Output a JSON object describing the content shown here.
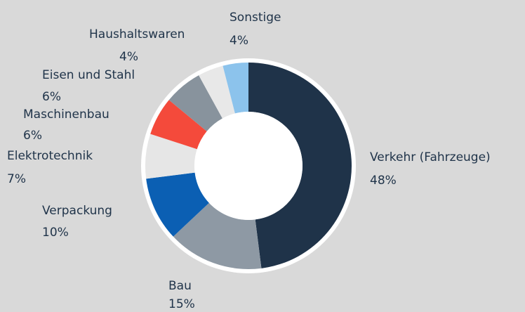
{
  "chart_data": {
    "type": "pie",
    "categories": [
      "Verkehr (Fahrzeuge)",
      "Bau",
      "Verpackung",
      "Elektrotechnik",
      "Maschinenbau",
      "Eisen und Stahl",
      "Haushaltswaren",
      "Sonstige"
    ],
    "values": [
      48,
      15,
      10,
      7,
      6,
      6,
      4,
      4
    ],
    "value_labels": [
      "48%",
      "15%",
      "10%",
      "7%",
      "6%",
      "6%",
      "4%",
      "4%"
    ],
    "colors": [
      "#1f3349",
      "#8e99a4",
      "#0b5fb3",
      "#e6e6e6",
      "#f44a3b",
      "#88939d",
      "#e8e8e8",
      "#8cc3ec"
    ],
    "donut": true
  }
}
